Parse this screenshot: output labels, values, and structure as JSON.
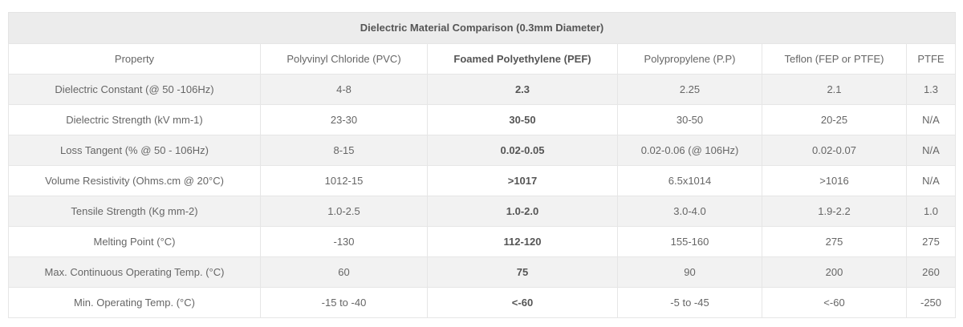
{
  "table": {
    "caption": "Dielectric Material Comparison (0.3mm Diameter)",
    "headers": [
      "Property",
      "Polyvinyl Chloride (PVC)",
      "Foamed Polyethylene (PEF)",
      "Polypropylene (P.P)",
      "Teflon (FEP or PTFE)",
      "PTFE"
    ],
    "highlight_column": 2,
    "rows": [
      [
        "Dielectric Constant (@ 50 -106Hz)",
        "4-8",
        "2.3",
        "2.25",
        "2.1",
        "1.3"
      ],
      [
        "Dielectric Strength (kV mm-1)",
        "23-30",
        "30-50",
        "30-50",
        "20-25",
        "N/A"
      ],
      [
        "Loss Tangent (% @ 50 - 106Hz)",
        "8-15",
        "0.02-0.05",
        "0.02-0.06 (@ 106Hz)",
        "0.02-0.07",
        "N/A"
      ],
      [
        "Volume Resistivity (Ohms.cm @ 20°C)",
        "1012-15",
        ">1017",
        "6.5x1014",
        ">1016",
        "N/A"
      ],
      [
        "Tensile Strength (Kg mm-2)",
        "1.0-2.5",
        "1.0-2.0",
        "3.0-4.0",
        "1.9-2.2",
        "1.0"
      ],
      [
        "Melting Point (°C)",
        "-130",
        "112-120",
        "155-160",
        "275",
        "275"
      ],
      [
        "Max. Continuous Operating Temp. (°C)",
        "60",
        "75",
        "90",
        "200",
        "260"
      ],
      [
        "Min. Operating Temp. (°C)",
        "-15 to -40",
        "<-60",
        "-5 to -45",
        "<-60",
        "-250"
      ]
    ]
  },
  "colors": {
    "caption_bg": "#ececec",
    "stripe_bg": "#f2f2f2",
    "border": "#e6e6e6",
    "text": "#666666"
  }
}
